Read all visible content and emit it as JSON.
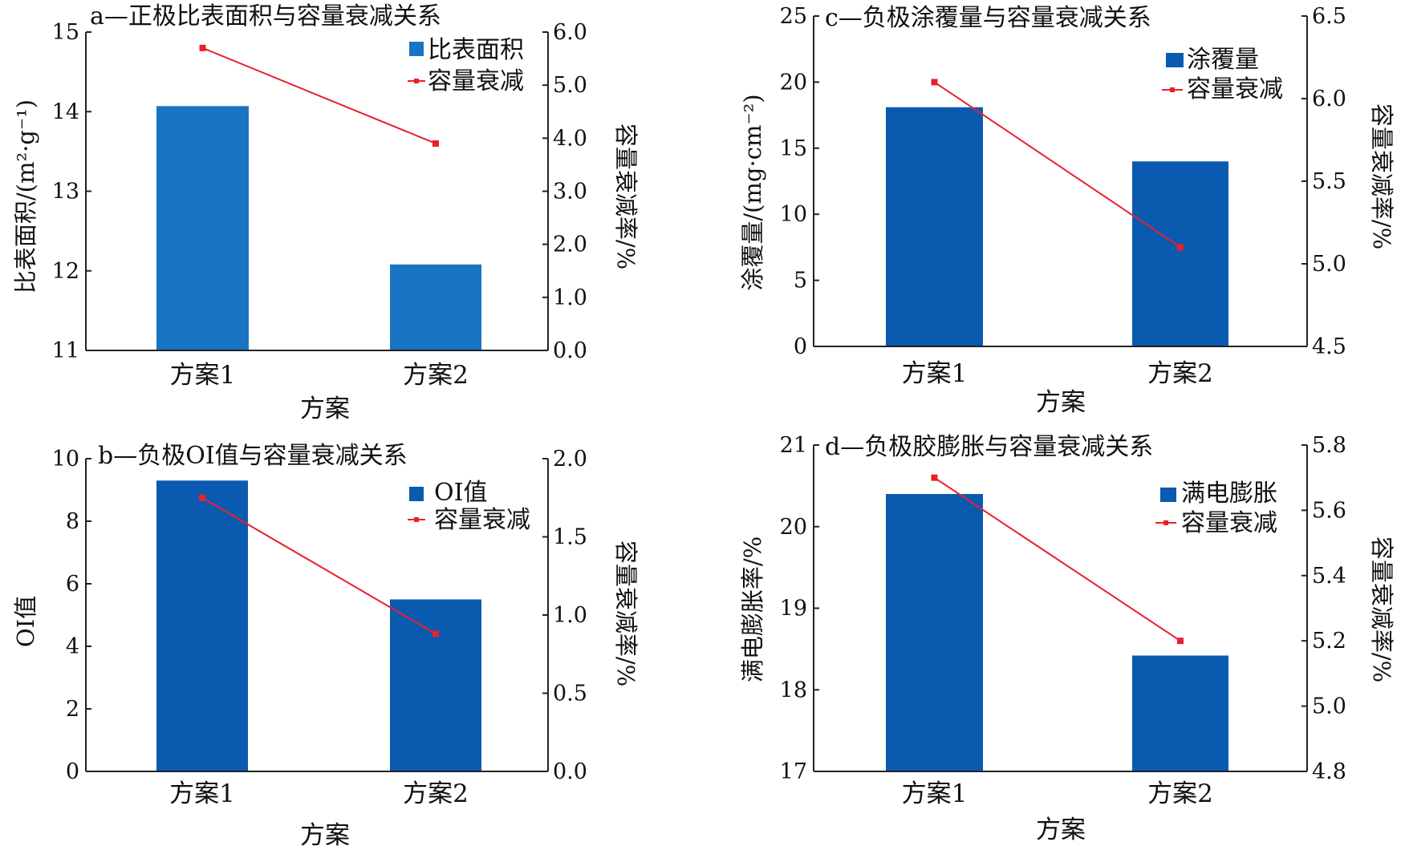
{
  "chart_data": [
    {
      "id": "a",
      "type": "bar",
      "title": "a—正极比表面积与容量衰减关系",
      "xlabel": "方案",
      "ylabel": "比表面积/(m²·g⁻¹)",
      "y2label": "容量衰减率/%",
      "categories": [
        "方案1",
        "方案2"
      ],
      "ylim": [
        11,
        15
      ],
      "y2lim": [
        0,
        6
      ],
      "yticks": [
        "11",
        "12",
        "13",
        "14",
        "15"
      ],
      "y2ticks": [
        "0.0",
        "1.0",
        "2.0",
        "3.0",
        "4.0",
        "5.0",
        "6.0"
      ],
      "bar_color": "#1a74c4",
      "line_color": "#e8202e",
      "series": [
        {
          "name": "比表面积",
          "kind": "bar",
          "axis": "left",
          "values": [
            14.07,
            12.08
          ]
        },
        {
          "name": "容量衰减",
          "kind": "line",
          "axis": "right",
          "values": [
            5.7,
            3.9
          ]
        }
      ],
      "legend": "top-right"
    },
    {
      "id": "b",
      "type": "bar",
      "title": "b—负极OI值与容量衰减关系",
      "xlabel": "方案",
      "ylabel": "OI值",
      "y2label": "容量衰减率/%",
      "categories": [
        "方案1",
        "方案2"
      ],
      "ylim": [
        0,
        10
      ],
      "y2lim": [
        0,
        2
      ],
      "yticks": [
        "0",
        "2",
        "4",
        "6",
        "8",
        "10"
      ],
      "y2ticks": [
        "0.0",
        "0.5",
        "1.0",
        "1.5",
        "2.0"
      ],
      "bar_color": "#0a5ab0",
      "line_color": "#e8202e",
      "series": [
        {
          "name": "OI值",
          "kind": "bar",
          "axis": "left",
          "values": [
            9.3,
            5.5
          ]
        },
        {
          "name": "容量衰减",
          "kind": "line",
          "axis": "right",
          "values": [
            1.75,
            0.88
          ]
        }
      ],
      "legend": "top-right"
    },
    {
      "id": "c",
      "type": "bar",
      "title": "c—负极涂覆量与容量衰减关系",
      "xlabel": "方案",
      "ylabel": "涂覆量/(mg·cm⁻²)",
      "y2label": "容量衰减率/%",
      "categories": [
        "方案1",
        "方案2"
      ],
      "ylim": [
        0,
        25
      ],
      "y2lim": [
        4.5,
        6.5
      ],
      "yticks": [
        "0",
        "5",
        "10",
        "15",
        "20",
        "25"
      ],
      "y2ticks": [
        "4.5",
        "5.0",
        "5.5",
        "6.0",
        "6.5"
      ],
      "bar_color": "#0a5ab0",
      "line_color": "#e8202e",
      "series": [
        {
          "name": "涂覆量",
          "kind": "bar",
          "axis": "left",
          "values": [
            18.1,
            14.0
          ]
        },
        {
          "name": "容量衰减",
          "kind": "line",
          "axis": "right",
          "values": [
            6.1,
            5.1
          ]
        }
      ],
      "legend": "top-right"
    },
    {
      "id": "d",
      "type": "bar",
      "title": "d—负极胶膨胀与容量衰减关系",
      "xlabel": "方案",
      "ylabel": "满电膨胀率/%",
      "y2label": "容量衰减率/%",
      "categories": [
        "方案1",
        "方案2"
      ],
      "ylim": [
        17,
        21
      ],
      "y2lim": [
        4.8,
        5.8
      ],
      "yticks": [
        "17",
        "18",
        "19",
        "20",
        "21"
      ],
      "y2ticks": [
        "4.8",
        "5.0",
        "5.2",
        "5.4",
        "5.6",
        "5.8"
      ],
      "bar_color": "#0a5ab0",
      "line_color": "#e8202e",
      "series": [
        {
          "name": "满电膨胀",
          "kind": "bar",
          "axis": "left",
          "values": [
            20.4,
            18.42
          ]
        },
        {
          "name": "容量衰减",
          "kind": "line",
          "axis": "right",
          "values": [
            5.7,
            5.2
          ]
        }
      ],
      "legend": "top-right"
    }
  ]
}
